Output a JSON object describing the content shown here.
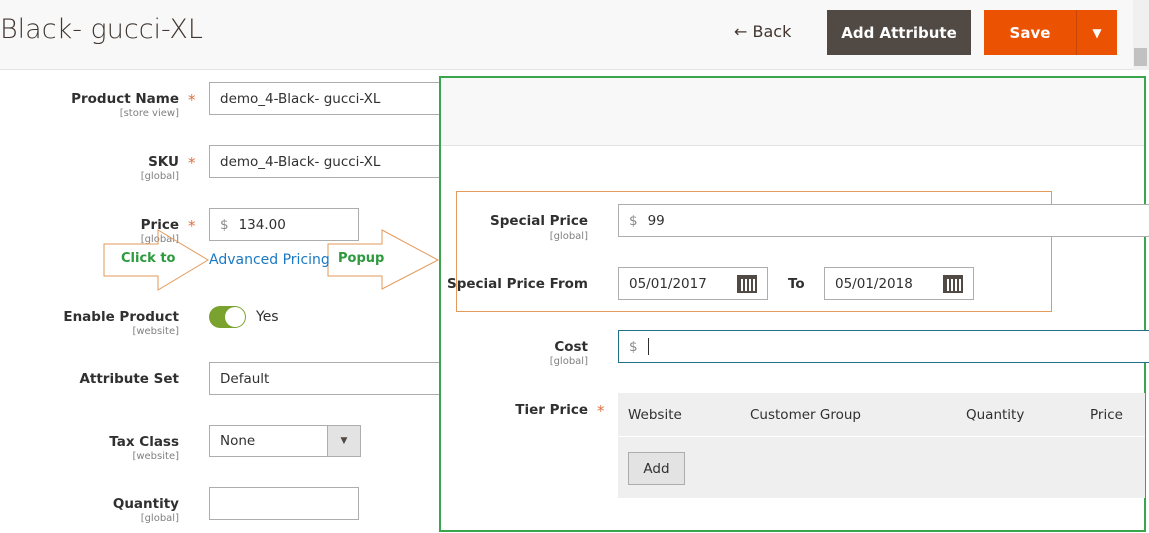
{
  "header": {
    "title": "Black- gucci-XL",
    "back_label": "Back",
    "add_attribute_label": "Add Attribute",
    "save_label": "Save"
  },
  "form": {
    "product_name": {
      "label": "Product Name",
      "scope": "[store view]",
      "value": "demo_4-Black- gucci-XL"
    },
    "sku": {
      "label": "SKU",
      "scope": "[global]",
      "value": "demo_4-Black- gucci-XL"
    },
    "price": {
      "label": "Price",
      "scope": "[global]",
      "currency": "$",
      "value": "134.00"
    },
    "advanced_pricing_link": "Advanced Pricing",
    "enable_product": {
      "label": "Enable Product",
      "scope": "[website]",
      "value": "Yes",
      "enabled": true
    },
    "attribute_set": {
      "label": "Attribute Set",
      "value": "Default"
    },
    "tax_class": {
      "label": "Tax Class",
      "scope": "[website]",
      "value": "None"
    },
    "quantity": {
      "label": "Quantity",
      "scope": "[global]",
      "value": ""
    }
  },
  "annotations": {
    "click_to": "Click to",
    "popup": "Popup",
    "annotation_color": "#e39a5a",
    "text_color": "#2c9a3d",
    "highlight_color": "#3aa54c"
  },
  "advanced_pricing": {
    "special_price": {
      "label": "Special Price",
      "scope": "[global]",
      "currency": "$",
      "value": "99"
    },
    "special_price_from": {
      "label": "Special Price From",
      "from": "05/01/2017",
      "to_label": "To",
      "to": "05/01/2018"
    },
    "cost": {
      "label": "Cost",
      "scope": "[global]",
      "currency": "$",
      "value": ""
    },
    "tier_price": {
      "label": "Tier Price",
      "columns": [
        "Website",
        "Customer Group",
        "Quantity",
        "Price"
      ],
      "add_label": "Add"
    }
  },
  "colors": {
    "save": "#eb5202",
    "add_attribute": "#514943",
    "link": "#1979c3"
  }
}
